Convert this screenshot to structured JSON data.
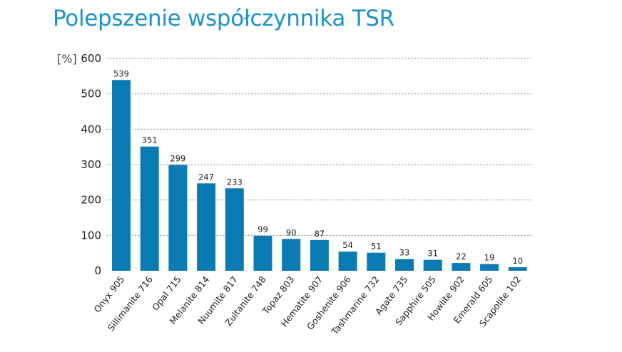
{
  "chart_data": {
    "type": "bar",
    "title": "Polepszenie współczynnika TSR",
    "ylabel": "[%]",
    "xlabel": "",
    "ylim": [
      0,
      600
    ],
    "yticks": [
      0,
      100,
      200,
      300,
      400,
      500,
      600
    ],
    "grid": true,
    "bar_color": "#0a7ab3",
    "title_color": "#1b93c4",
    "categories": [
      "Onyx 905",
      "Sillimanite 716",
      "Opal 715",
      "Melanite 814",
      "Nuumite 817",
      "Zultanite 748",
      "Topaz 803",
      "Hematite 907",
      "Goshenite 906",
      "Tashmarine 732",
      "Agate 735",
      "Sapphire 505",
      "Howlite 902",
      "Emerald 605",
      "Scapolite 102"
    ],
    "values": [
      539,
      351,
      299,
      247,
      233,
      99,
      90,
      87,
      54,
      51,
      33,
      31,
      22,
      19,
      10
    ]
  }
}
